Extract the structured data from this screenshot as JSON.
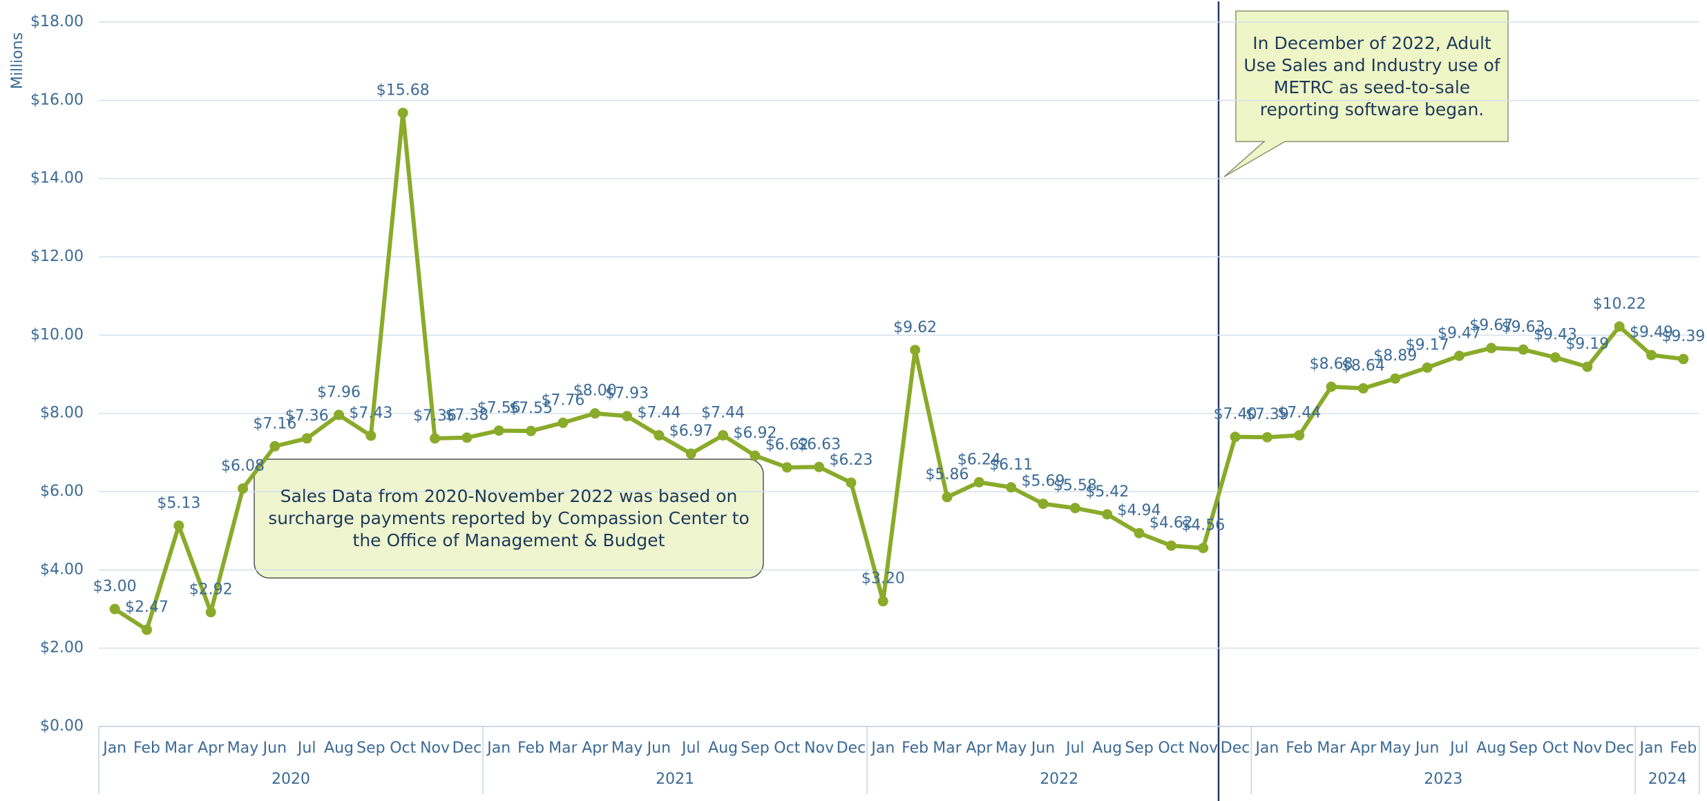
{
  "chart_data": {
    "type": "line",
    "y_label": "Millions",
    "categories": [
      "Jan",
      "Feb",
      "Mar",
      "Apr",
      "May",
      "Jun",
      "Jul",
      "Aug",
      "Sep",
      "Oct",
      "Nov",
      "Dec",
      "Jan",
      "Feb",
      "Mar",
      "Apr",
      "May",
      "Jun",
      "Jul",
      "Aug",
      "Sep",
      "Oct",
      "Nov",
      "Dec",
      "Jan",
      "Feb",
      "Mar",
      "Apr",
      "May",
      "Jun",
      "Jul",
      "Aug",
      "Sep",
      "Oct",
      "Nov",
      "Dec",
      "Jan",
      "Feb",
      "Mar",
      "Apr",
      "May",
      "Jun",
      "Jul",
      "Aug",
      "Sep",
      "Oct",
      "Nov",
      "Dec",
      "Jan",
      "Feb"
    ],
    "x_groups": [
      "2020",
      "2021",
      "2022",
      "2023",
      "2024"
    ],
    "values": [
      3.0,
      2.47,
      5.13,
      2.92,
      6.08,
      7.16,
      7.36,
      7.96,
      7.43,
      15.68,
      7.36,
      7.38,
      7.56,
      7.55,
      7.76,
      8.0,
      7.93,
      7.44,
      6.97,
      7.44,
      6.92,
      6.62,
      6.63,
      6.23,
      3.2,
      9.62,
      5.86,
      6.24,
      6.11,
      5.69,
      5.58,
      5.42,
      4.94,
      4.62,
      4.56,
      7.4,
      7.39,
      7.44,
      8.68,
      8.64,
      8.89,
      9.17,
      9.47,
      9.67,
      9.63,
      9.43,
      9.19,
      10.22,
      9.49,
      9.39
    ],
    "value_labels": [
      "$3.00",
      "$2.47",
      "$5.13",
      "$2.92",
      "$6.08",
      "$7.16",
      "$7.36",
      "$7.96",
      "$7.43",
      "$15.68",
      "$7.36",
      "$7.38",
      "$7.56",
      "$7.55",
      "$7.76",
      "$8.00",
      "$7.93",
      "$7.44",
      "$6.97",
      "$7.44",
      "$6.92",
      "$6.62",
      "$6.63",
      "$6.23",
      "$3.20",
      "$9.62",
      "$5.86",
      "$6.24",
      "$6.11",
      "$5.69",
      "$5.58",
      "$5.42",
      "$4.94",
      "$4.62",
      "$4.56",
      "$7.40",
      "$7.39",
      "$7.44",
      "$8.68",
      "$8.64",
      "$8.89",
      "$9.17",
      "$9.47",
      "$9.67",
      "$9.63",
      "$9.43",
      "$9.19",
      "$10.22",
      "$9.49",
      "$9.39"
    ],
    "color": "#8aaa2a",
    "ylim": [
      0,
      18
    ],
    "yticks": [
      {
        "value": 0,
        "label": "$0.00"
      },
      {
        "value": 2,
        "label": "$2.00"
      },
      {
        "value": 4,
        "label": "$4.00"
      },
      {
        "value": 6,
        "label": "$6.00"
      },
      {
        "value": 8,
        "label": "$8.00"
      },
      {
        "value": 10,
        "label": "$10.00"
      },
      {
        "value": 12,
        "label": "$12.00"
      },
      {
        "value": 14,
        "label": "$14.00"
      },
      {
        "value": 16,
        "label": "$16.00"
      },
      {
        "value": 18,
        "label": "$18.00"
      }
    ],
    "grid": true,
    "annotations": [
      "Sales Data from 2020-November 2022 was based on surcharge payments reported by Compassion Center to the Office of Management & Budget",
      "In December of 2022, Adult Use Sales and Industry use of METRC as seed-to-sale reporting software began."
    ]
  }
}
